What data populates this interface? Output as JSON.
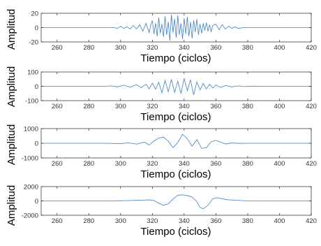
{
  "line_color": "#3d7ec6",
  "axis_color": "#262626",
  "chart_data": [
    {
      "type": "line",
      "title": "",
      "xlabel": "Tiempo (ciclos)",
      "ylabel": "Amplitud",
      "xlim": [
        250,
        420
      ],
      "ylim": [
        -20,
        20
      ],
      "xticks": [
        "260",
        "280",
        "300",
        "320",
        "340",
        "360",
        "380",
        "400",
        "420"
      ],
      "yticks": [
        "20",
        "0",
        "-20"
      ],
      "grid": false,
      "series": [
        {
          "x": [
            250,
            296,
            298,
            300,
            302,
            304,
            306,
            308,
            310,
            312,
            314,
            316,
            318,
            319,
            320,
            321,
            322,
            323,
            324,
            325,
            326,
            327,
            328,
            329,
            330,
            331,
            332,
            333,
            334,
            335,
            336,
            337,
            338,
            339,
            340,
            341,
            342,
            343,
            344,
            345,
            346,
            347,
            348,
            349,
            350,
            351,
            352,
            353,
            354,
            355,
            356,
            357,
            358,
            360,
            362,
            364,
            366,
            368,
            370,
            372,
            374,
            378,
            420
          ],
          "y": [
            0,
            0,
            -1,
            2,
            -1,
            1,
            -2,
            3,
            -2,
            4,
            -5,
            6,
            -7,
            4,
            10,
            -9,
            6,
            -12,
            14,
            -8,
            5,
            -13,
            16,
            -10,
            8,
            -18,
            18,
            -7,
            12,
            -14,
            17,
            -10,
            6,
            -16,
            13,
            -9,
            15,
            -12,
            8,
            -15,
            10,
            -6,
            12,
            -10,
            5,
            -8,
            6,
            -4,
            7,
            -5,
            4,
            -6,
            3,
            5,
            -3,
            4,
            -2,
            2,
            -1,
            1,
            -1,
            0,
            0
          ]
        }
      ]
    },
    {
      "type": "line",
      "title": "",
      "xlabel": "Tiempo (ciclos)",
      "ylabel": "Amplitud",
      "xlim": [
        250,
        420
      ],
      "ylim": [
        -100,
        100
      ],
      "xticks": [
        "260",
        "280",
        "300",
        "320",
        "340",
        "360",
        "380",
        "400",
        "420"
      ],
      "yticks": [
        "100",
        "0",
        "-100"
      ],
      "grid": false,
      "series": [
        {
          "x": [
            250,
            290,
            294,
            298,
            302,
            306,
            310,
            313,
            316,
            318,
            320,
            322,
            324,
            326,
            328,
            330,
            332,
            334,
            336,
            338,
            340,
            342,
            344,
            346,
            348,
            350,
            352,
            354,
            356,
            358,
            360,
            363,
            366,
            370,
            374,
            378,
            382,
            420
          ],
          "y": [
            0,
            0,
            3,
            -4,
            8,
            -6,
            12,
            -10,
            15,
            -18,
            22,
            -20,
            28,
            -45,
            40,
            -38,
            48,
            -42,
            35,
            -50,
            55,
            -30,
            45,
            -60,
            30,
            -25,
            20,
            -18,
            15,
            -12,
            10,
            -8,
            6,
            -4,
            3,
            -2,
            1,
            0
          ]
        }
      ]
    },
    {
      "type": "line",
      "title": "",
      "xlabel": "Tiempo (ciclos)",
      "ylabel": "Amplitud",
      "xlim": [
        250,
        420
      ],
      "ylim": [
        -1000,
        1000
      ],
      "xticks": [
        "260",
        "280",
        "300",
        "320",
        "340",
        "360",
        "380",
        "400",
        "420"
      ],
      "yticks": [
        "1000",
        "0",
        "-1000"
      ],
      "grid": false,
      "series": [
        {
          "x": [
            250,
            290,
            300,
            305,
            310,
            315,
            318,
            321,
            324,
            327,
            330,
            333,
            336,
            339,
            342,
            345,
            348,
            351,
            354,
            357,
            360,
            363,
            366,
            370,
            375,
            380,
            420
          ],
          "y": [
            0,
            0,
            -20,
            30,
            -60,
            80,
            -120,
            150,
            350,
            420,
            150,
            -300,
            50,
            620,
            300,
            -200,
            250,
            -350,
            -300,
            100,
            200,
            80,
            -50,
            20,
            -10,
            0,
            0
          ]
        }
      ]
    },
    {
      "type": "line",
      "title": "",
      "xlabel": "Tiempo (ciclos)",
      "ylabel": "Amplitud",
      "xlim": [
        250,
        420
      ],
      "ylim": [
        -2000,
        2000
      ],
      "xticks": [
        "260",
        "280",
        "300",
        "320",
        "340",
        "360",
        "380",
        "400",
        "420"
      ],
      "yticks": [
        "2000",
        "0",
        "-2000"
      ],
      "grid": false,
      "series": [
        {
          "x": [
            250,
            290,
            300,
            305,
            310,
            315,
            318,
            321,
            324,
            327,
            330,
            333,
            336,
            339,
            342,
            345,
            348,
            350,
            352,
            355,
            358,
            361,
            364,
            368,
            372,
            376,
            380,
            420
          ],
          "y": [
            0,
            0,
            30,
            50,
            80,
            120,
            150,
            50,
            -300,
            -600,
            -400,
            250,
            800,
            850,
            750,
            550,
            -100,
            -900,
            -1100,
            -600,
            300,
            450,
            300,
            150,
            100,
            50,
            20,
            0
          ]
        }
      ]
    }
  ]
}
